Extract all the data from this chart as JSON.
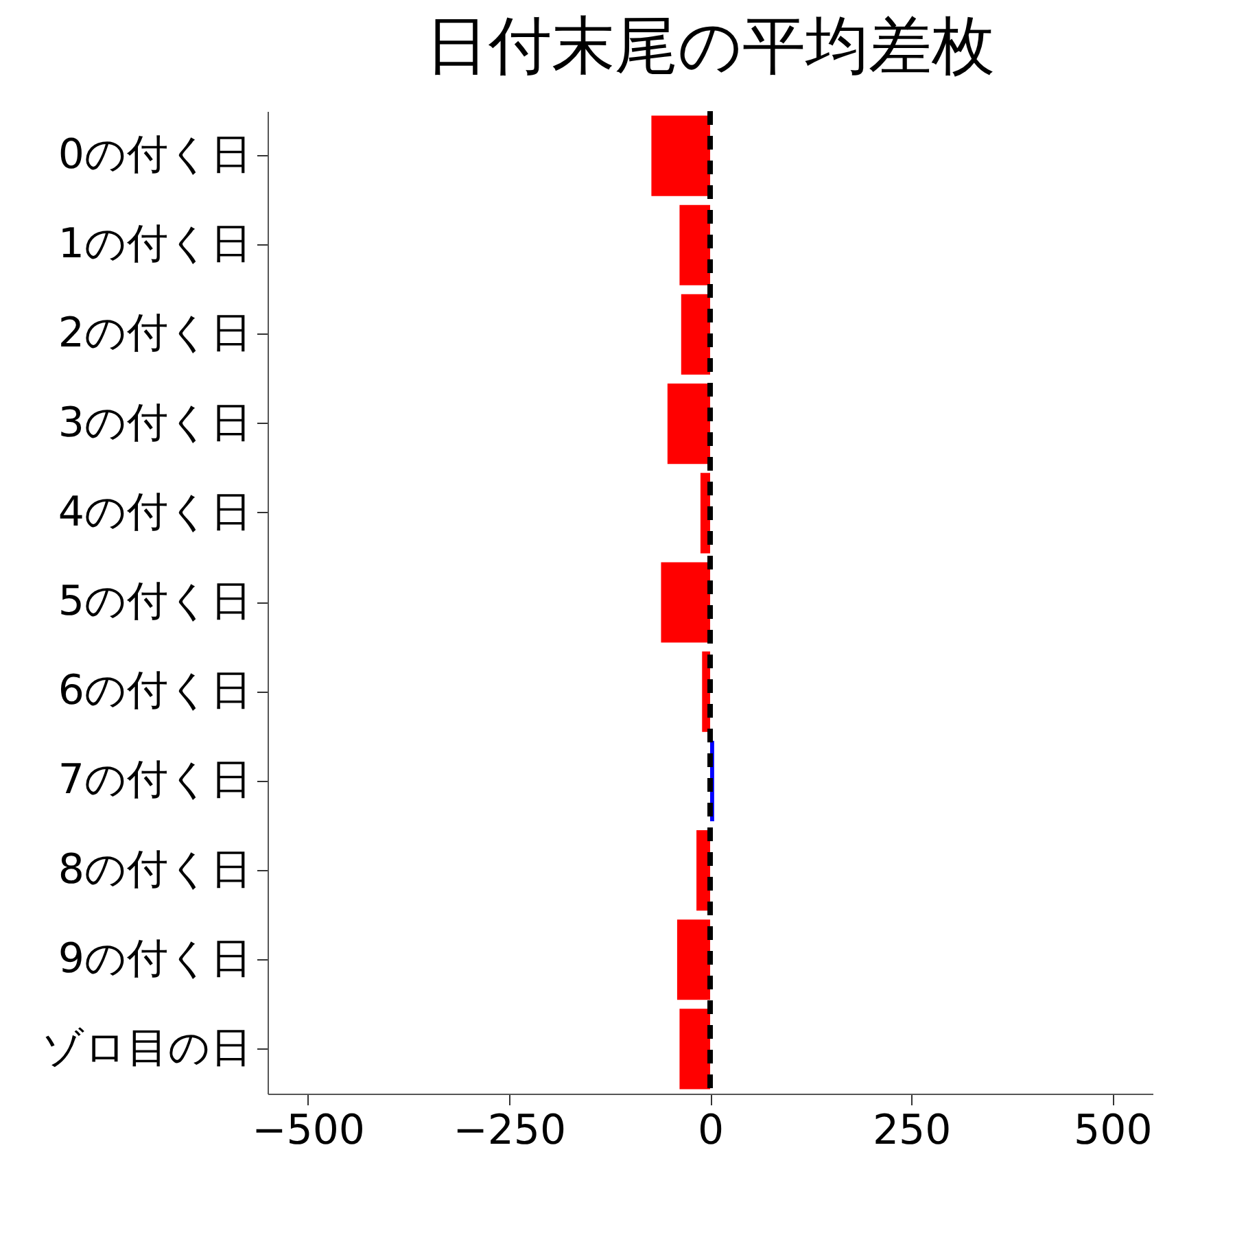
{
  "chart_data": {
    "type": "bar",
    "orientation": "horizontal",
    "title": "日付末尾の平均差枚",
    "categories": [
      "0の付く日",
      "1の付く日",
      "2の付く日",
      "3の付く日",
      "4の付く日",
      "5の付く日",
      "6の付く日",
      "7の付く日",
      "8の付く日",
      "9の付く日",
      "ゾロ目の日"
    ],
    "values": [
      -73,
      -38,
      -36,
      -53,
      -12,
      -61,
      -10,
      5,
      -17,
      -41,
      -38
    ],
    "colors": [
      "#ff0000",
      "#ff0000",
      "#ff0000",
      "#ff0000",
      "#ff0000",
      "#ff0000",
      "#ff0000",
      "#0000ff",
      "#ff0000",
      "#ff0000",
      "#ff0000"
    ],
    "xlim": [
      -550,
      550
    ],
    "xticks": [
      -500,
      -250,
      0,
      250,
      500
    ],
    "ref_lines": [
      {
        "axis": "x",
        "value": 0,
        "color": "#000000",
        "line_style": "dashed"
      }
    ],
    "grid": false
  }
}
